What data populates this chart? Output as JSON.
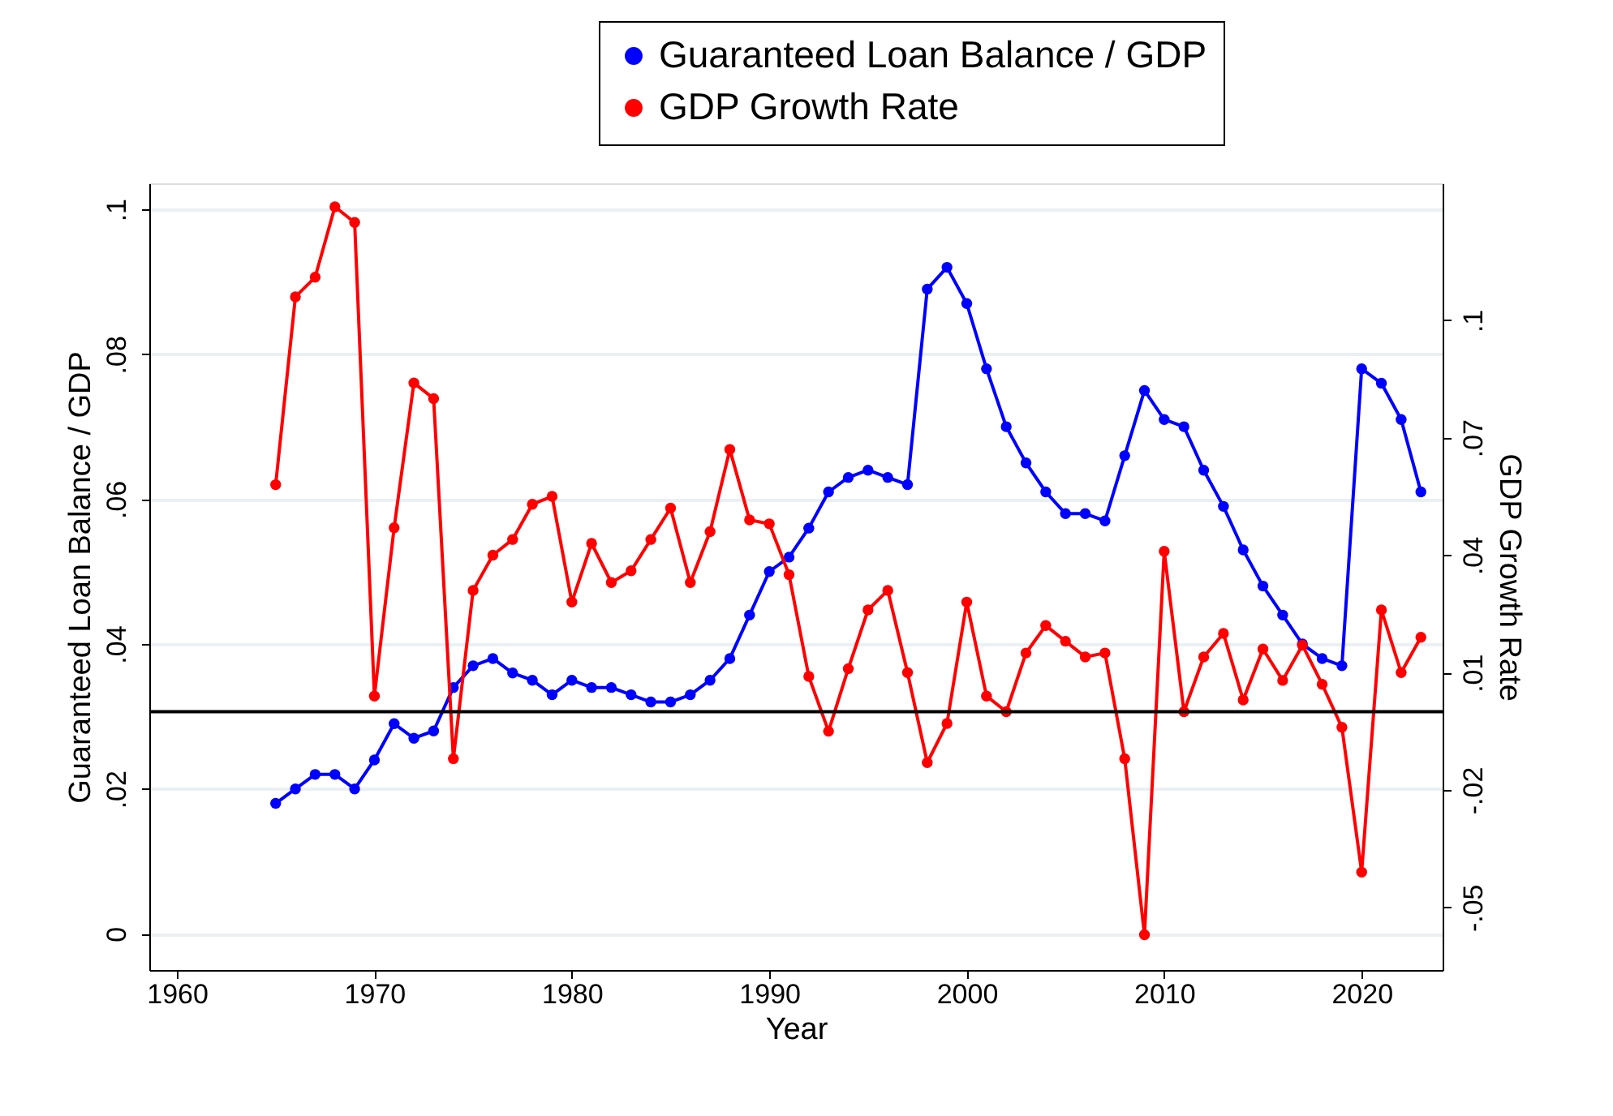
{
  "chart_data": {
    "type": "line",
    "xlabel": "Year",
    "ylabel": "Guaranteed Loan Balance / GDP",
    "y2label": "GDP Growth Rate",
    "x": [
      1965,
      1966,
      1967,
      1968,
      1969,
      1970,
      1971,
      1972,
      1973,
      1974,
      1975,
      1976,
      1977,
      1978,
      1979,
      1980,
      1981,
      1982,
      1983,
      1984,
      1985,
      1986,
      1987,
      1988,
      1989,
      1990,
      1991,
      1992,
      1993,
      1994,
      1995,
      1996,
      1997,
      1998,
      1999,
      2000,
      2001,
      2002,
      2003,
      2004,
      2005,
      2006,
      2007,
      2008,
      2009,
      2010,
      2011,
      2012,
      2013,
      2014,
      2015,
      2016,
      2017,
      2018,
      2019,
      2020,
      2021,
      2022,
      2023
    ],
    "series": [
      {
        "name": "Guaranteed Loan Balance / GDP",
        "color": "#0000ff",
        "values": [
          0.018,
          0.02,
          0.022,
          0.022,
          0.02,
          0.024,
          0.029,
          0.027,
          0.028,
          0.034,
          0.037,
          0.038,
          0.036,
          0.035,
          0.033,
          0.035,
          0.034,
          0.034,
          0.033,
          0.032,
          0.032,
          0.033,
          0.035,
          0.038,
          0.044,
          0.05,
          0.052,
          0.056,
          0.061,
          0.063,
          0.064,
          0.063,
          0.062,
          0.089,
          0.092,
          0.087,
          0.078,
          0.07,
          0.065,
          0.061,
          0.058,
          0.058,
          0.057,
          0.066,
          0.075,
          0.071,
          0.07,
          0.064,
          0.059,
          0.053,
          0.048,
          0.044,
          0.04,
          0.038,
          0.037,
          0.078,
          0.076,
          0.071,
          0.061
        ]
      },
      {
        "name": "GDP Growth Rate",
        "color": "#ff0000",
        "axis": "y2",
        "values": [
          0.058,
          0.106,
          0.111,
          0.129,
          0.125,
          0.004,
          0.047,
          0.084,
          0.08,
          -0.012,
          0.031,
          0.04,
          0.044,
          0.053,
          0.055,
          0.028,
          0.043,
          0.033,
          0.036,
          0.044,
          0.052,
          0.033,
          0.046,
          0.067,
          0.049,
          0.048,
          0.035,
          0.009,
          -0.005,
          0.011,
          0.026,
          0.031,
          0.01,
          -0.013,
          -0.003,
          0.028,
          0.004,
          0.0,
          0.015,
          0.022,
          0.018,
          0.014,
          0.015,
          -0.012,
          -0.057,
          0.041,
          0.0,
          0.014,
          0.02,
          0.003,
          0.016,
          0.008,
          0.017,
          0.007,
          -0.004,
          -0.041,
          0.026,
          0.01,
          0.019
        ]
      }
    ],
    "xlim": [
      1958.6,
      2024.1
    ],
    "xticks": [
      1960,
      1970,
      1980,
      1990,
      2000,
      2010,
      2020
    ],
    "ylim": [
      -0.005,
      0.1036
    ],
    "yticks": [
      0,
      {
        "value": 0.02,
        "label": ".02"
      },
      {
        "value": 0.04,
        "label": ".04"
      },
      {
        "value": 0.06,
        "label": ".06"
      },
      {
        "value": 0.08,
        "label": ".08"
      },
      {
        "value": 0.1,
        "label": ".1"
      }
    ],
    "y2lim": [
      -0.066,
      0.135
    ],
    "y2ticks": [
      {
        "value": -0.05,
        "label": "-.05"
      },
      {
        "value": -0.02,
        "label": "-.02"
      },
      {
        "value": 0.01,
        "label": ".01"
      },
      {
        "value": 0.04,
        "label": ".04"
      },
      {
        "value": 0.07,
        "label": ".07"
      },
      {
        "value": 0.1,
        "label": ".1"
      }
    ],
    "ref_lines": [
      {
        "axis": "y2",
        "value": 0,
        "color": "#000000"
      }
    ],
    "grid": "y",
    "legend": "top right",
    "marker": "circle",
    "line_style": "solid"
  }
}
